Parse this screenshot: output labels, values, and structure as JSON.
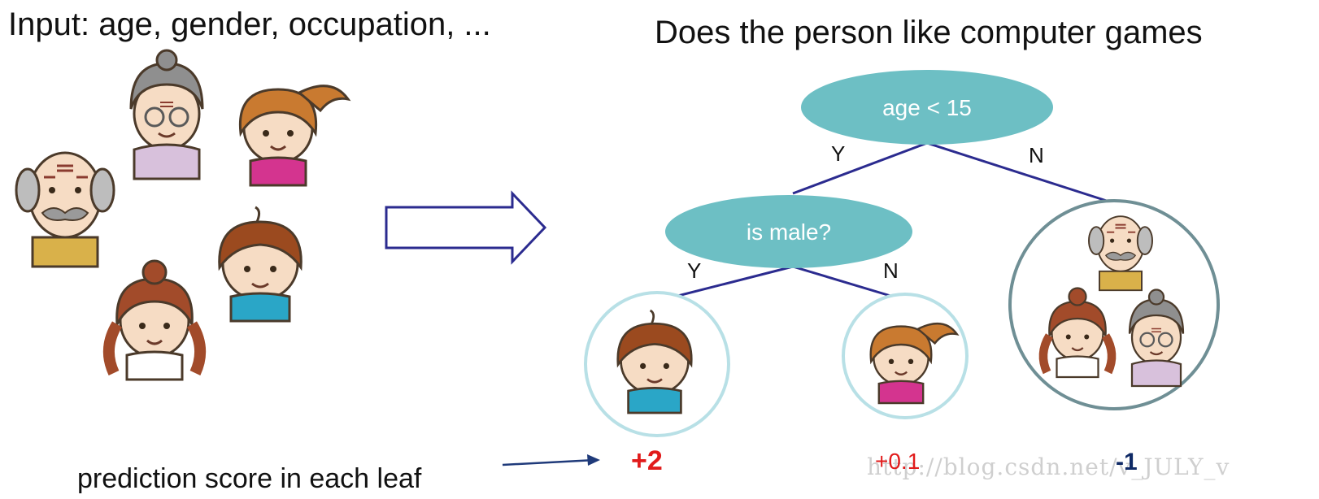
{
  "header": {
    "left_title": "Input: age, gender, occupation, ...",
    "right_title": "Does the person like computer games"
  },
  "tree": {
    "root": {
      "label": "age < 15",
      "yes": "Y",
      "no": "N"
    },
    "child": {
      "label": "is male?",
      "yes": "Y",
      "no": "N"
    }
  },
  "leaves": [
    {
      "score": "+2"
    },
    {
      "score": "+0.1"
    },
    {
      "score": "-1"
    }
  ],
  "caption": "prediction score in each leaf",
  "watermark": "http://blog.csdn.net/v_JULY_v",
  "colors": {
    "node_fill": "#6dbfc4",
    "edge": "#2b2b8f",
    "leaf_ring_light": "#b8e0e6",
    "leaf_ring_dark": "#6f8f95",
    "positive": "#e11b1b",
    "negative": "#0f2a66"
  },
  "icons": [
    "grandfather-icon",
    "grandmother-icon",
    "boy-icon",
    "girl-icon",
    "woman-icon",
    "hollow-arrow-icon",
    "pointer-arrow-icon"
  ]
}
